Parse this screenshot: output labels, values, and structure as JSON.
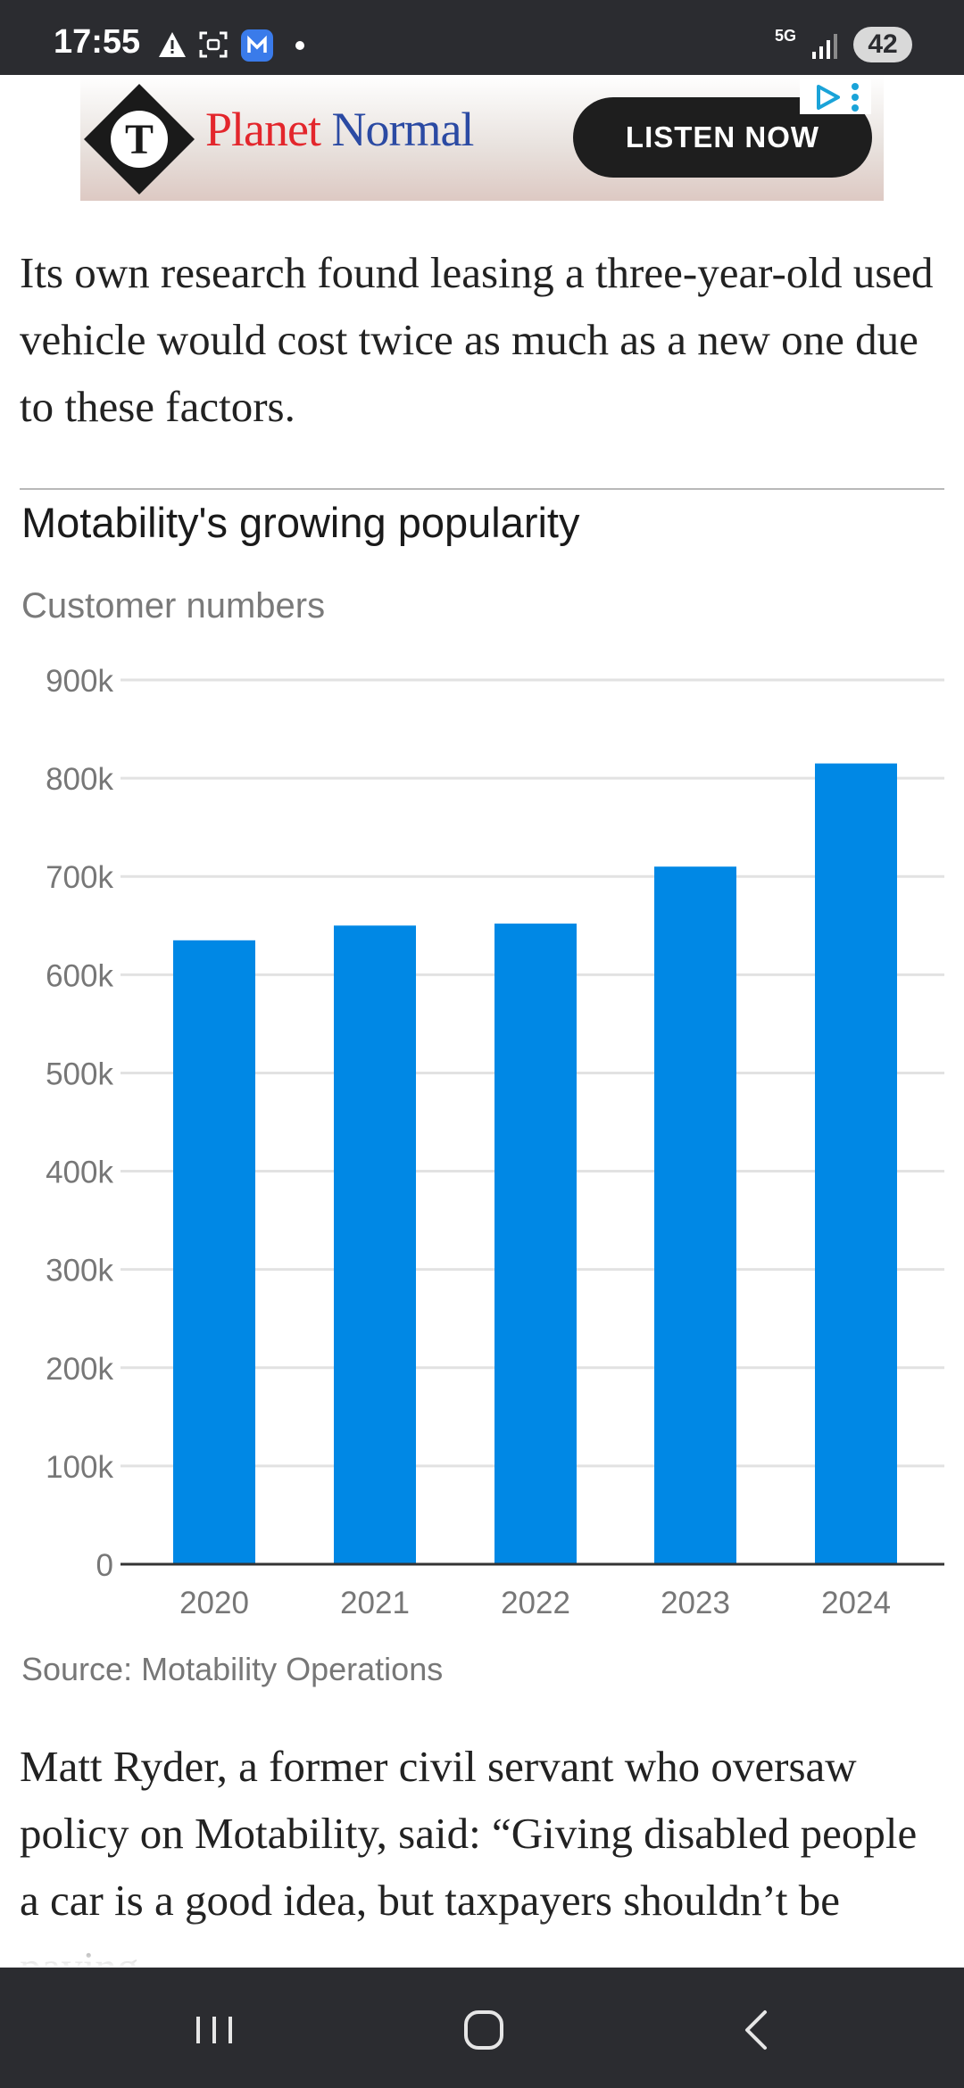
{
  "status_bar": {
    "time": "17:55",
    "network": "5G",
    "battery": "42",
    "icons": [
      "warning-icon",
      "screenshot-icon",
      "messenger-app-icon",
      "notification-dot-icon",
      "signal-icon"
    ]
  },
  "ad": {
    "brand_part1": "Planet",
    "brand_part2": "Normal",
    "button_label": "LISTEN NOW",
    "logo_letter": "T",
    "icons": [
      "telegraph-logo-icon",
      "ad-choices-icon",
      "more-options-icon"
    ]
  },
  "article": {
    "paragraph_1": "Its own research found leasing a three-year-old used vehicle would cost twice as much as a new one due to these factors.",
    "paragraph_2": "Matt Ryder, a former civil servant who oversaw policy on Motability, said: “Giving disabled people a car is a good idea, but taxpayers shouldn’t be paying"
  },
  "chart": {
    "title": "Motability's growing popularity",
    "subtitle": "Customer numbers",
    "source": "Source: Motability Operations"
  },
  "chart_data": {
    "type": "bar",
    "title": "Motability's growing popularity",
    "subtitle": "Customer numbers",
    "categories": [
      "2020",
      "2021",
      "2022",
      "2023",
      "2024"
    ],
    "values": [
      635000,
      650000,
      652000,
      710000,
      815000
    ],
    "yticks": [
      0,
      100000,
      200000,
      300000,
      400000,
      500000,
      600000,
      700000,
      800000,
      900000
    ],
    "ytick_labels": [
      "0",
      "100k",
      "200k",
      "300k",
      "400k",
      "500k",
      "600k",
      "700k",
      "800k",
      "900k"
    ],
    "ylim": [
      0,
      900000
    ],
    "xlabel": "",
    "ylabel": "",
    "grid": true,
    "bar_color": "#0088e5"
  },
  "nav_bar": {
    "icons": [
      "recent-apps-icon",
      "home-icon",
      "back-icon"
    ]
  }
}
